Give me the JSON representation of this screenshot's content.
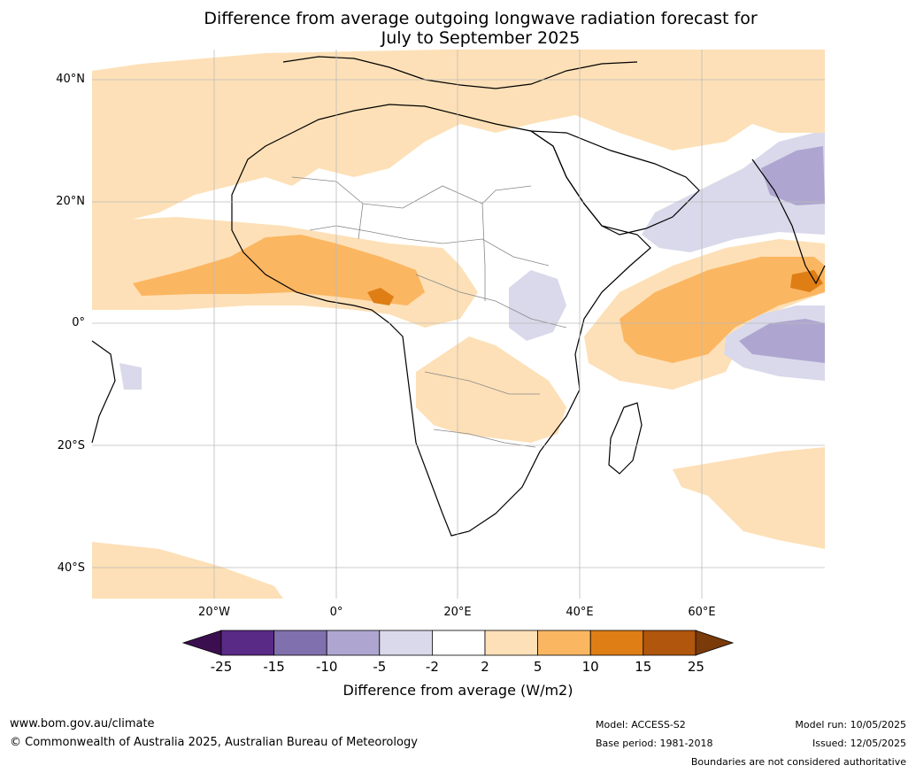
{
  "title": {
    "line1": "Difference from average outgoing longwave radiation forecast for",
    "line2": "July to September 2025"
  },
  "axes": {
    "lat_labels": [
      "40°N",
      "20°N",
      "0°",
      "20°S",
      "40°S"
    ],
    "lon_labels": [
      "20°W",
      "0°",
      "20°E",
      "40°E",
      "60°E"
    ]
  },
  "colorbar": {
    "ticks": [
      "-25",
      "-15",
      "-10",
      "-5",
      "-2",
      "2",
      "5",
      "10",
      "15",
      "25"
    ],
    "colors": [
      "#3b0f4f",
      "#5a2a87",
      "#8070ad",
      "#aea6d0",
      "#d9d9eb",
      "#ffffff",
      "#fde0b7",
      "#fbb661",
      "#de7e15",
      "#b1560d",
      "#7a3a0a"
    ],
    "label": "Difference from average (W/m2)"
  },
  "footer": {
    "url": "www.bom.gov.au/climate",
    "copyright": "© Commonwealth of Australia 2025, Australian Bureau of Meteorology",
    "model": "Model: ACCESS-S2",
    "base_period": "Base period: 1981-2018",
    "model_run": "Model run: 10/05/2025",
    "issued": "Issued: 12/05/2025",
    "disclaimer": "Boundaries are not considered authoritative"
  }
}
